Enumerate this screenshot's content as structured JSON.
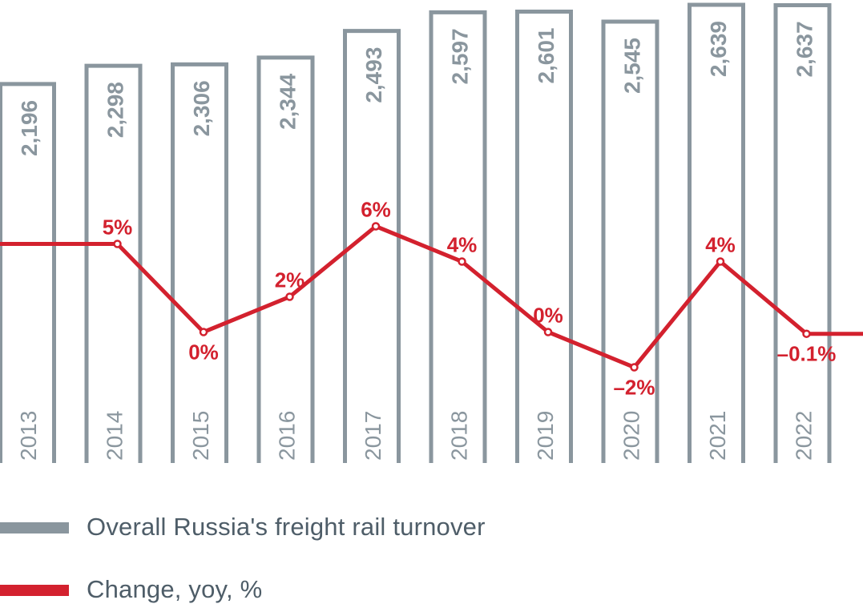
{
  "chart_data": {
    "type": "bar+line",
    "categories": [
      "2013",
      "2014",
      "2015",
      "2016",
      "2017",
      "2018",
      "2019",
      "2020",
      "2021",
      "2022"
    ],
    "series": [
      {
        "name": "Overall Russia's freight rail turnover",
        "type": "bar",
        "values": [
          2196,
          2298,
          2306,
          2344,
          2493,
          2597,
          2601,
          2545,
          2639,
          2637
        ],
        "labels": [
          "2,196",
          "2,298",
          "2,306",
          "2,344",
          "2,493",
          "2,597",
          "2,601",
          "2,545",
          "2,639",
          "2,637"
        ],
        "color": "#8a969e"
      },
      {
        "name": "Change, yoy, %",
        "type": "line",
        "values": [
          5,
          5,
          0,
          2,
          6,
          4,
          0,
          -2,
          4,
          -0.1
        ],
        "labels": [
          "",
          "5%",
          "0%",
          "2%",
          "6%",
          "4%",
          "0%",
          "–2%",
          "4%",
          "–0.1%"
        ],
        "color": "#d3212e"
      }
    ],
    "legend_position": "bottom-left"
  }
}
